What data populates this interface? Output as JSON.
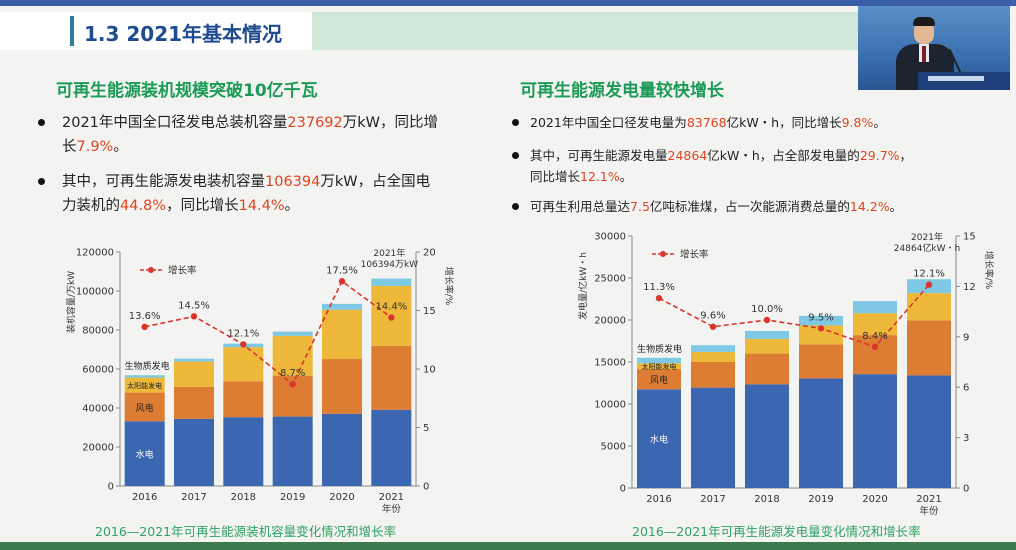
{
  "slide": {
    "title": "1.3 2021年基本情况"
  },
  "video": {
    "speaker": "presenter-video"
  },
  "left": {
    "heading": "可再生能源装机规模突破10亿千瓦",
    "bullets": [
      {
        "parts": [
          "2021年中国全口径发电总装机容量",
          "237692",
          "万kW，同比增",
          "长",
          "7.9%",
          "。"
        ]
      },
      {
        "parts": [
          "其中，可再生能源发电装机容量",
          "106394",
          "万kW，占全国电",
          "力装机的",
          "44.8%",
          "，同比增长",
          "14.4%",
          "。"
        ]
      }
    ],
    "caption": "2016—2021年可再生能源装机容量变化情况和增长率"
  },
  "right": {
    "heading": "可再生能源发电量较快增长",
    "bullets": [
      {
        "parts": [
          "2021年中国全口径发电量为",
          "83768",
          "亿kW・h，同比增长",
          "9.8%",
          "。"
        ]
      },
      {
        "parts": [
          "其中，可再生能源发电量",
          "24864",
          "亿kW・h，占全部发电量的",
          "29.7%",
          "，",
          "同比增长",
          "12.1%",
          "。"
        ]
      },
      {
        "parts": [
          "可再生利用总量达",
          "7.5",
          "亿吨标准煤，占一次能源消费总量的",
          "14.2%",
          "。"
        ]
      }
    ],
    "caption": "2016—2021年可再生能源发电量变化情况和增长率"
  },
  "colors": {
    "hydro": "#3b66b0",
    "wind": "#dd7d34",
    "solar": "#eeb93a",
    "bio": "#7ec8e3",
    "rate": "#d9352b",
    "title": "#1f4b8f",
    "green": "#1d9a57"
  },
  "chart_data": [
    {
      "type": "bar",
      "stacked": true,
      "categories": [
        "2016",
        "2017",
        "2018",
        "2019",
        "2020",
        "2021"
      ],
      "xlabel": "年份",
      "ylabel": "装机容量/万kW",
      "y2label": "增长率/%",
      "ylim": [
        0,
        120000
      ],
      "yticks": [
        0,
        20000,
        40000,
        60000,
        80000,
        100000,
        120000
      ],
      "y2lim": [
        0,
        20
      ],
      "y2ticks": [
        0,
        5,
        10,
        15,
        20
      ],
      "series": [
        {
          "name": "水电",
          "values": [
            33200,
            34400,
            35300,
            35600,
            37000,
            39100
          ]
        },
        {
          "name": "风电",
          "values": [
            14700,
            16400,
            18400,
            21000,
            28100,
            32800
          ]
        },
        {
          "name": "太阳能发电",
          "values": [
            7700,
            13000,
            17500,
            20400,
            25300,
            30700
          ]
        },
        {
          "name": "生物质发电",
          "values": [
            1200,
            1500,
            1800,
            2200,
            3000,
            3800
          ]
        }
      ],
      "rate": {
        "name": "增长率",
        "values": [
          13.6,
          14.5,
          12.1,
          8.7,
          17.5,
          14.4
        ],
        "labels": [
          "13.6%",
          "14.5%",
          "12.1%",
          "8.7%",
          "17.5%",
          "14.4%"
        ]
      },
      "annotation": "2021年\n106394万kW",
      "bar_labels": [
        "生物质发电",
        "太阳能发电",
        "风电",
        "水电"
      ]
    },
    {
      "type": "bar",
      "stacked": true,
      "categories": [
        "2016",
        "2017",
        "2018",
        "2019",
        "2020",
        "2021"
      ],
      "xlabel": "年份",
      "ylabel": "发电量/亿kW・h",
      "y2label": "增长率/%",
      "ylim": [
        0,
        30000
      ],
      "yticks": [
        0,
        5000,
        10000,
        15000,
        20000,
        25000,
        30000
      ],
      "y2lim": [
        0,
        15
      ],
      "y2ticks": [
        0,
        3,
        6,
        9,
        12,
        15
      ],
      "series": [
        {
          "name": "水电",
          "values": [
            11750,
            11950,
            12350,
            13050,
            13550,
            13400
          ]
        },
        {
          "name": "风电",
          "values": [
            2400,
            3050,
            3650,
            4050,
            4650,
            6550
          ]
        },
        {
          "name": "太阳能发电",
          "values": [
            700,
            1200,
            1750,
            2250,
            2600,
            3250
          ]
        },
        {
          "name": "生物质发电",
          "values": [
            650,
            800,
            950,
            1150,
            1450,
            1650
          ]
        }
      ],
      "rate": {
        "name": "增长率",
        "values": [
          11.3,
          9.6,
          10.0,
          9.5,
          8.4,
          12.1
        ],
        "labels": [
          "11.3%",
          "9.6%",
          "10.0%",
          "9.5%",
          "8.4%",
          "12.1%"
        ]
      },
      "annotation": "2021年\n24864亿kW・h",
      "bar_labels": [
        "生物质发电",
        "太阳能发电",
        "风电",
        "水电"
      ]
    }
  ]
}
